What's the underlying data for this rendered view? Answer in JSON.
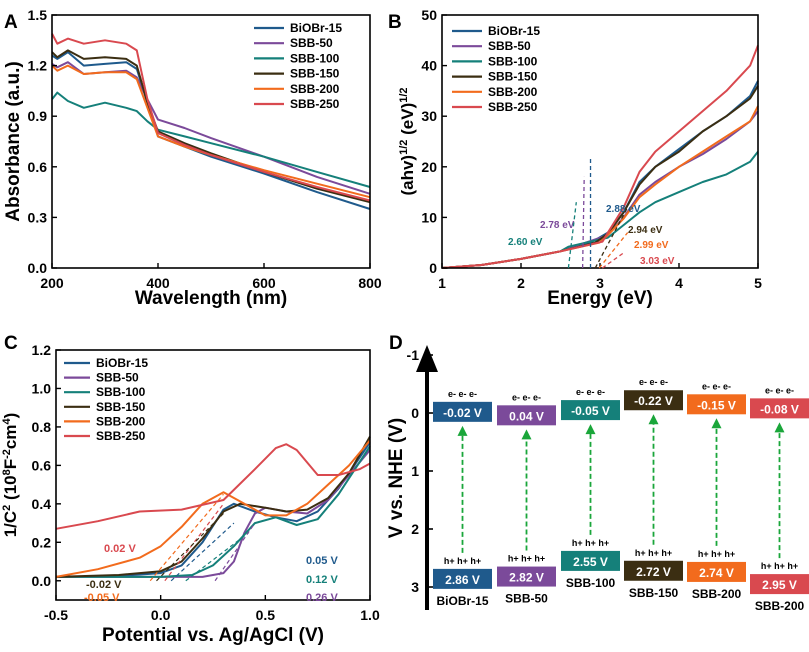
{
  "colors": {
    "BiOBr-15": "#1f5a8c",
    "SBB-50": "#7b4a9a",
    "SBB-100": "#15807a",
    "SBB-150": "#3b2e12",
    "SBB-200": "#f26b1d",
    "SBB-250": "#d9494f",
    "arrow": "#1aa63a",
    "axis": "#000000"
  },
  "chart_data": [
    {
      "panel": "A",
      "type": "line",
      "xlabel": "Wavelength (nm)",
      "ylabel": "Absorbance (a.u.)",
      "xlim": [
        200,
        800
      ],
      "ylim": [
        0,
        1.5
      ],
      "xticks": [
        200,
        400,
        600,
        800
      ],
      "xtick_labels": [
        "200",
        "400",
        "600",
        "800"
      ],
      "yticks": [
        0,
        0.3,
        0.6,
        0.9,
        1.2,
        1.5
      ],
      "ytick_labels": [
        "0.0",
        "0.3",
        "0.6",
        "0.9",
        "1.2",
        "1.5"
      ],
      "legend": [
        "BiOBr-15",
        "SBB-50",
        "SBB-100",
        "SBB-150",
        "SBB-200",
        "SBB-250"
      ],
      "legend_position": "top-right",
      "series": [
        {
          "name": "BiOBr-15",
          "x": [
            200,
            210,
            230,
            260,
            300,
            340,
            360,
            380,
            400,
            450,
            500,
            600,
            700,
            800
          ],
          "y": [
            1.26,
            1.24,
            1.28,
            1.2,
            1.21,
            1.22,
            1.18,
            0.98,
            0.78,
            0.72,
            0.66,
            0.56,
            0.45,
            0.35
          ]
        },
        {
          "name": "SBB-50",
          "x": [
            200,
            210,
            230,
            260,
            300,
            340,
            360,
            380,
            400,
            450,
            500,
            600,
            700,
            800
          ],
          "y": [
            1.21,
            1.19,
            1.22,
            1.15,
            1.16,
            1.17,
            1.13,
            1.0,
            0.88,
            0.83,
            0.77,
            0.66,
            0.54,
            0.44
          ]
        },
        {
          "name": "SBB-100",
          "x": [
            200,
            210,
            230,
            260,
            300,
            340,
            360,
            380,
            400,
            450,
            500,
            600,
            700,
            800
          ],
          "y": [
            1.0,
            1.04,
            0.99,
            0.95,
            0.98,
            0.95,
            0.93,
            0.87,
            0.82,
            0.78,
            0.74,
            0.66,
            0.57,
            0.48
          ]
        },
        {
          "name": "SBB-150",
          "x": [
            200,
            210,
            230,
            260,
            300,
            340,
            360,
            380,
            400,
            450,
            500,
            600,
            700,
            800
          ],
          "y": [
            1.28,
            1.25,
            1.29,
            1.24,
            1.25,
            1.24,
            1.2,
            0.98,
            0.81,
            0.74,
            0.68,
            0.57,
            0.47,
            0.39
          ]
        },
        {
          "name": "SBB-200",
          "x": [
            200,
            210,
            230,
            260,
            300,
            340,
            360,
            380,
            400,
            450,
            500,
            600,
            700,
            800
          ],
          "y": [
            1.2,
            1.17,
            1.2,
            1.15,
            1.16,
            1.16,
            1.12,
            0.95,
            0.78,
            0.72,
            0.67,
            0.58,
            0.5,
            0.42
          ]
        },
        {
          "name": "SBB-250",
          "x": [
            200,
            210,
            230,
            260,
            300,
            340,
            360,
            380,
            400,
            450,
            500,
            600,
            700,
            800
          ],
          "y": [
            1.39,
            1.33,
            1.36,
            1.33,
            1.35,
            1.33,
            1.29,
            1.0,
            0.8,
            0.73,
            0.67,
            0.57,
            0.48,
            0.4
          ]
        }
      ]
    },
    {
      "panel": "B",
      "type": "line",
      "xlabel": "Energy (eV)",
      "ylabel": "(ahv)1/2 (eV)1/2",
      "xlim": [
        1,
        5
      ],
      "ylim": [
        0,
        50
      ],
      "xticks": [
        1,
        2,
        3,
        4,
        5
      ],
      "xtick_labels": [
        "1",
        "2",
        "3",
        "4",
        "5"
      ],
      "yticks": [
        0,
        10,
        20,
        30,
        40,
        50
      ],
      "ytick_labels": [
        "0",
        "10",
        "20",
        "30",
        "40",
        "50"
      ],
      "legend": [
        "BiOBr-15",
        "SBB-50",
        "SBB-100",
        "SBB-150",
        "SBB-200",
        "SBB-250"
      ],
      "legend_position": "top-left",
      "series": [
        {
          "name": "BiOBr-15",
          "x": [
            1,
            1.5,
            2,
            2.5,
            2.88,
            3.1,
            3.3,
            3.5,
            3.7,
            4,
            4.3,
            4.6,
            4.9,
            5
          ],
          "y": [
            0,
            0.6,
            1.8,
            3.3,
            5,
            7,
            11,
            17,
            20,
            23.5,
            27,
            30,
            34,
            37
          ]
        },
        {
          "name": "SBB-50",
          "x": [
            1,
            1.5,
            2,
            2.5,
            2.78,
            3.1,
            3.3,
            3.5,
            3.7,
            4,
            4.3,
            4.6,
            4.9,
            5
          ],
          "y": [
            0,
            0.6,
            1.8,
            3.3,
            4.8,
            6.5,
            10,
            14.5,
            17,
            20,
            22.5,
            25.5,
            29,
            31
          ]
        },
        {
          "name": "SBB-100",
          "x": [
            1,
            1.5,
            2,
            2.5,
            2.6,
            3.1,
            3.3,
            3.5,
            3.7,
            4,
            4.3,
            4.6,
            4.9,
            5
          ],
          "y": [
            0,
            0.6,
            1.8,
            3.3,
            4.2,
            6,
            8.5,
            11,
            13,
            15,
            17,
            18.5,
            21,
            23
          ]
        },
        {
          "name": "SBB-150",
          "x": [
            1,
            1.5,
            2,
            2.5,
            2.94,
            3.1,
            3.3,
            3.5,
            3.7,
            4,
            4.3,
            4.6,
            4.9,
            5
          ],
          "y": [
            0,
            0.6,
            1.8,
            3.3,
            5,
            6.8,
            11,
            16.5,
            20,
            23,
            27,
            30,
            33.5,
            36
          ]
        },
        {
          "name": "SBB-200",
          "x": [
            1,
            1.5,
            2,
            2.5,
            2.99,
            3.1,
            3.3,
            3.5,
            3.7,
            4,
            4.3,
            4.6,
            4.9,
            5
          ],
          "y": [
            0,
            0.6,
            1.8,
            3.3,
            5,
            6.5,
            9.8,
            14,
            16.5,
            20,
            23,
            26,
            29,
            32
          ]
        },
        {
          "name": "SBB-250",
          "x": [
            1,
            1.5,
            2,
            2.5,
            3.03,
            3.1,
            3.3,
            3.5,
            3.7,
            4,
            4.3,
            4.6,
            4.9,
            5
          ],
          "y": [
            0,
            0.6,
            1.8,
            3.3,
            5.2,
            7,
            12,
            19,
            23,
            27,
            31,
            35,
            40,
            44
          ]
        }
      ],
      "annotations": [
        {
          "text": "2.88 eV",
          "series": "BiOBr-15",
          "value": 2.88
        },
        {
          "text": "2.78 eV",
          "series": "SBB-50",
          "value": 2.78
        },
        {
          "text": "2.60 eV",
          "series": "SBB-100",
          "value": 2.6
        },
        {
          "text": "2.94 eV",
          "series": "SBB-150",
          "value": 2.94
        },
        {
          "text": "2.99 eV",
          "series": "SBB-200",
          "value": 2.99
        },
        {
          "text": "3.03 eV",
          "series": "SBB-250",
          "value": 3.03
        }
      ]
    },
    {
      "panel": "C",
      "type": "line",
      "xlabel": "Potential vs. Ag/AgCl (V)",
      "ylabel": "1/C2 (108F-2cm4)",
      "xlim": [
        -0.5,
        1.0
      ],
      "ylim": [
        -0.1,
        1.2
      ],
      "xticks": [
        -0.5,
        0.0,
        0.5,
        1.0
      ],
      "xtick_labels": [
        "-0.5",
        "0.0",
        "0.5",
        "1.0"
      ],
      "yticks": [
        0.0,
        0.2,
        0.4,
        0.6,
        0.8,
        1.0,
        1.2
      ],
      "ytick_labels": [
        "0.0",
        "0.2",
        "0.4",
        "0.6",
        "0.8",
        "1.0",
        "1.2"
      ],
      "legend": [
        "BiOBr-15",
        "SBB-50",
        "SBB-100",
        "SBB-150",
        "SBB-200",
        "SBB-250"
      ],
      "legend_position": "top-left",
      "series": [
        {
          "name": "BiOBr-15",
          "x": [
            -0.5,
            -0.2,
            0.0,
            0.1,
            0.2,
            0.3,
            0.35,
            0.45,
            0.55,
            0.65,
            0.75,
            0.85,
            1.0
          ],
          "y": [
            0.02,
            0.025,
            0.04,
            0.08,
            0.2,
            0.37,
            0.4,
            0.36,
            0.33,
            0.31,
            0.36,
            0.48,
            0.72
          ]
        },
        {
          "name": "SBB-50",
          "x": [
            -0.5,
            -0.2,
            0.0,
            0.2,
            0.3,
            0.35,
            0.4,
            0.45,
            0.5,
            0.6,
            0.7,
            0.8,
            1.0
          ],
          "y": [
            0.02,
            0.02,
            0.02,
            0.02,
            0.04,
            0.1,
            0.25,
            0.35,
            0.38,
            0.36,
            0.35,
            0.42,
            0.68
          ]
        },
        {
          "name": "SBB-100",
          "x": [
            -0.5,
            -0.2,
            0.0,
            0.15,
            0.25,
            0.35,
            0.45,
            0.55,
            0.65,
            0.75,
            0.85,
            1.0
          ],
          "y": [
            0.02,
            0.02,
            0.02,
            0.03,
            0.08,
            0.18,
            0.3,
            0.33,
            0.29,
            0.32,
            0.45,
            0.7
          ]
        },
        {
          "name": "SBB-150",
          "x": [
            -0.5,
            -0.2,
            0.0,
            0.1,
            0.2,
            0.3,
            0.38,
            0.5,
            0.6,
            0.7,
            0.8,
            0.9,
            1.0
          ],
          "y": [
            0.02,
            0.03,
            0.05,
            0.1,
            0.22,
            0.36,
            0.4,
            0.38,
            0.36,
            0.37,
            0.43,
            0.56,
            0.75
          ]
        },
        {
          "name": "SBB-200",
          "x": [
            -0.5,
            -0.3,
            -0.1,
            0.0,
            0.1,
            0.2,
            0.3,
            0.4,
            0.5,
            0.6,
            0.7,
            0.8,
            0.9,
            1.0
          ],
          "y": [
            0.02,
            0.06,
            0.12,
            0.18,
            0.28,
            0.4,
            0.46,
            0.4,
            0.34,
            0.34,
            0.4,
            0.5,
            0.6,
            0.73
          ]
        },
        {
          "name": "SBB-250",
          "x": [
            -0.5,
            -0.3,
            -0.1,
            0.1,
            0.3,
            0.45,
            0.55,
            0.6,
            0.65,
            0.75,
            0.85,
            0.95,
            1.0
          ],
          "y": [
            0.27,
            0.31,
            0.36,
            0.37,
            0.42,
            0.58,
            0.69,
            0.71,
            0.68,
            0.55,
            0.55,
            0.58,
            0.61
          ]
        }
      ],
      "annotations": [
        {
          "text": "0.05 V",
          "series": "BiOBr-15",
          "value": 0.05
        },
        {
          "text": "0.12 V",
          "series": "SBB-100",
          "value": 0.12
        },
        {
          "text": "0.26 V",
          "series": "SBB-50",
          "value": 0.26
        },
        {
          "text": "0.02 V",
          "series": "SBB-250",
          "value": 0.02
        },
        {
          "text": "-0.02 V",
          "series": "SBB-150",
          "value": -0.02
        },
        {
          "text": "-0.05 V",
          "series": "SBB-200",
          "value": -0.05
        }
      ]
    },
    {
      "panel": "D",
      "type": "diagram",
      "ylabel": "V vs. NHE (V)",
      "ylim": [
        -1.6,
        3.3
      ],
      "yticks": [
        -1,
        0,
        1,
        2,
        3
      ],
      "ytick_labels": [
        "-1",
        "0",
        "1",
        "2",
        "3"
      ],
      "electron_label": "e- e- e-",
      "hole_label": "h+ h+ h+",
      "columns": [
        {
          "name": "BiOBr-15",
          "color": "BiOBr-15",
          "cb": -0.02,
          "cb_label": "-0.02 V",
          "vb": 2.86,
          "vb_label": "2.86 V"
        },
        {
          "name": "SBB-50",
          "color": "SBB-50",
          "cb": 0.04,
          "cb_label": "0.04 V",
          "vb": 2.82,
          "vb_label": "2.82 V"
        },
        {
          "name": "SBB-100",
          "color": "SBB-100",
          "cb": -0.05,
          "cb_label": "-0.05 V",
          "vb": 2.55,
          "vb_label": "2.55 V"
        },
        {
          "name": "SBB-150",
          "color": "SBB-150",
          "cb": -0.22,
          "cb_label": "-0.22 V",
          "vb": 2.72,
          "vb_label": "2.72 V"
        },
        {
          "name": "SBB-200",
          "color": "SBB-200",
          "cb": -0.15,
          "cb_label": "-0.15 V",
          "vb": 2.74,
          "vb_label": "2.74 V"
        },
        {
          "name": "SBB-200",
          "color": "SBB-250",
          "cb": -0.08,
          "cb_label": "-0.08 V",
          "vb": 2.95,
          "vb_label": "2.95 V"
        }
      ]
    }
  ]
}
